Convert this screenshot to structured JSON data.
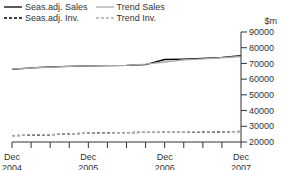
{
  "chart_data": {
    "type": "line",
    "y_label": "$m",
    "categories": [
      "Dec 2004",
      null,
      null,
      null,
      "Dec 2005",
      null,
      null,
      null,
      "Dec 2006",
      null,
      null,
      null,
      "Dec 2007"
    ],
    "series": [
      {
        "name": "Seas.adj. Sales",
        "color": "#000000",
        "line_style": "solid",
        "values": [
          66200,
          67200,
          67800,
          68100,
          68400,
          68600,
          68700,
          69300,
          72500,
          72800,
          73200,
          73800,
          75000
        ]
      },
      {
        "name": "Trend Sales",
        "color": "#aaaaaa",
        "line_style": "solid",
        "values": [
          66400,
          67100,
          67700,
          68100,
          68400,
          68600,
          68800,
          69500,
          70900,
          72200,
          72900,
          73600,
          74400
        ]
      },
      {
        "name": "Seas.adj. Inv.",
        "color": "#000000",
        "line_style": "dashed",
        "values": [
          24000,
          24300,
          24600,
          25200,
          25600,
          25900,
          26000,
          26100,
          26200,
          26100,
          26200,
          26400,
          26700
        ]
      },
      {
        "name": "Trend Inv.",
        "color": "#aaaaaa",
        "line_style": "dashed",
        "values": [
          24100,
          24400,
          24800,
          25200,
          25600,
          25800,
          26000,
          26100,
          26200,
          26200,
          26300,
          26500,
          26600
        ]
      }
    ],
    "ylim": [
      20000,
      90000
    ],
    "yticks": [
      20000,
      30000,
      40000,
      50000,
      60000,
      70000,
      80000,
      90000
    ],
    "grid": false,
    "legend": "top-left"
  }
}
